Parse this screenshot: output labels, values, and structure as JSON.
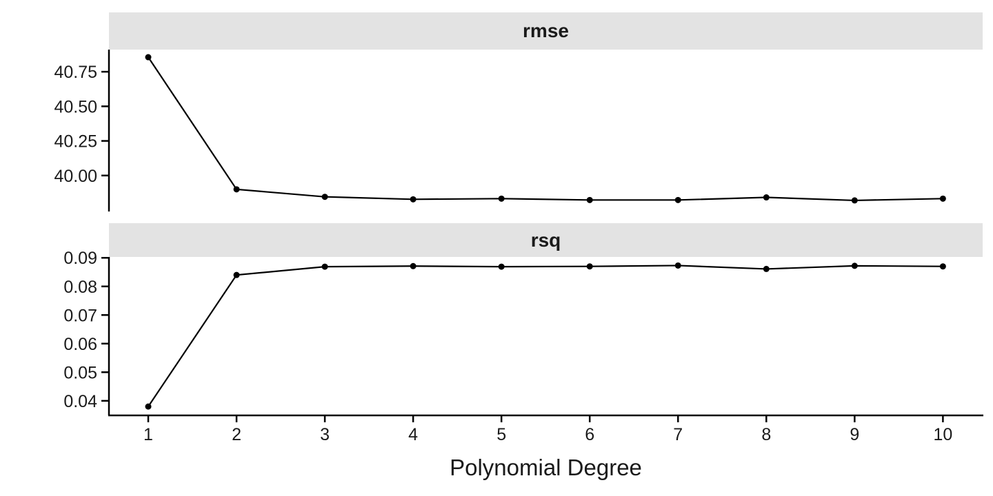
{
  "colors": {
    "background": "#ffffff",
    "strip_bg": "#e3e3e3",
    "axis": "#000000",
    "text": "#1a1a1a",
    "series": "#000000"
  },
  "chart_data": {
    "type": "line",
    "title": "",
    "xlabel": "Polynomial Degree",
    "ylabel": "",
    "grid": false,
    "legend": "none",
    "x": [
      1,
      2,
      3,
      4,
      5,
      6,
      7,
      8,
      9,
      10
    ],
    "x_tick_labels": [
      "1",
      "2",
      "3",
      "4",
      "5",
      "6",
      "7",
      "8",
      "9",
      "10"
    ],
    "xlim": [
      0.555,
      10.45
    ],
    "facets": [
      {
        "label": "rmse",
        "values": [
          40.855,
          39.9,
          39.846,
          39.828,
          39.833,
          39.823,
          39.823,
          39.842,
          39.82,
          39.833
        ],
        "y_ticks": [
          {
            "value": 40.0,
            "label": "40.00"
          },
          {
            "value": 40.25,
            "label": "40.25"
          },
          {
            "value": 40.5,
            "label": "40.50"
          },
          {
            "value": 40.75,
            "label": "40.75"
          }
        ],
        "ylim": [
          39.74,
          40.91
        ]
      },
      {
        "label": "rsq",
        "values": [
          0.038,
          0.084,
          0.0869,
          0.0871,
          0.0869,
          0.087,
          0.0873,
          0.0861,
          0.0872,
          0.087
        ],
        "y_ticks": [
          {
            "value": 0.04,
            "label": "0.04"
          },
          {
            "value": 0.05,
            "label": "0.05"
          },
          {
            "value": 0.06,
            "label": "0.06"
          },
          {
            "value": 0.07,
            "label": "0.07"
          },
          {
            "value": 0.08,
            "label": "0.08"
          },
          {
            "value": 0.09,
            "label": "0.09"
          }
        ],
        "ylim": [
          0.0349,
          0.0903
        ]
      }
    ]
  }
}
